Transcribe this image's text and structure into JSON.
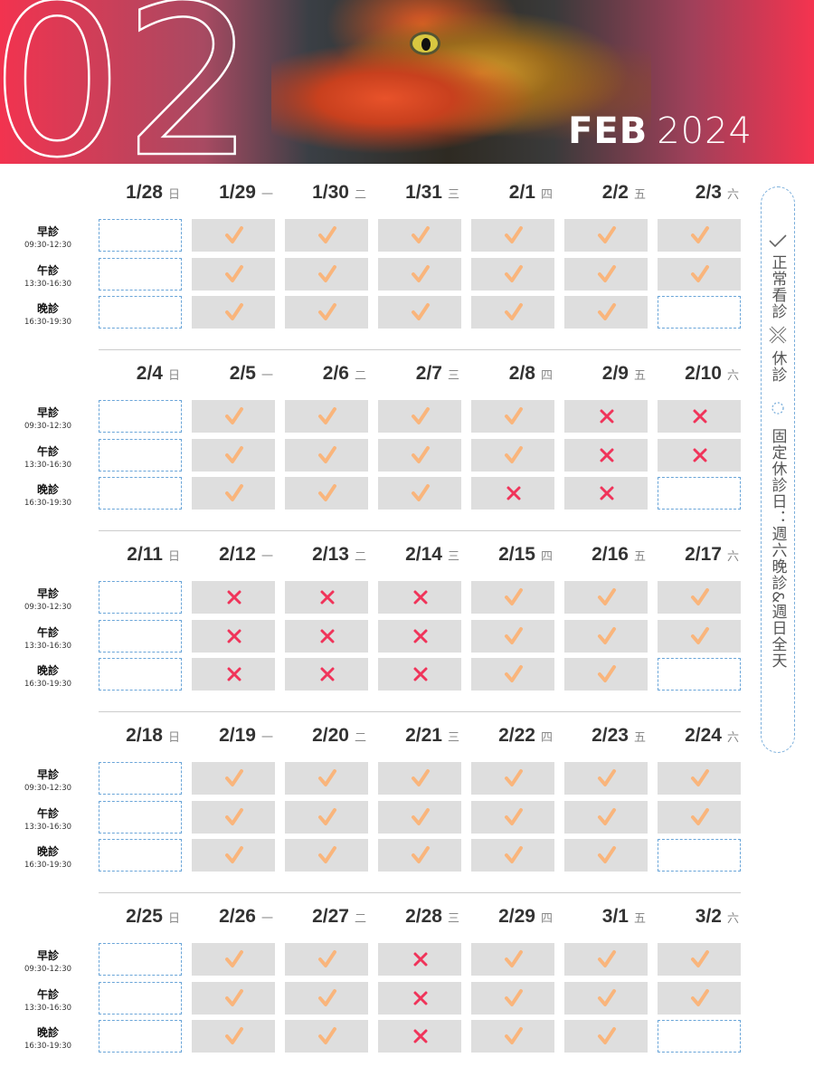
{
  "banner": {
    "big_number": "02",
    "month": "FEB",
    "year": "2024"
  },
  "slots": [
    {
      "name": "早診",
      "time": "09:30-12:30"
    },
    {
      "name": "午診",
      "time": "13:30-16:30"
    },
    {
      "name": "晚診",
      "time": "16:30-19:30"
    }
  ],
  "status_legend": {
    "open": "正常看診",
    "closed": "休診",
    "fixed": "固定休診日：週六晚診&週日全天"
  },
  "colors": {
    "check": "#f9b57c",
    "cross": "#f0345a",
    "open_bg": "#dedede",
    "fixed_border": "#6aa5d8",
    "banner": "#f2334f"
  },
  "weeks": [
    {
      "days": [
        {
          "date": "1/28",
          "weekday": "日",
          "status": [
            "fixed",
            "fixed",
            "fixed"
          ]
        },
        {
          "date": "1/29",
          "weekday": "一",
          "status": [
            "open",
            "open",
            "open"
          ]
        },
        {
          "date": "1/30",
          "weekday": "二",
          "status": [
            "open",
            "open",
            "open"
          ]
        },
        {
          "date": "1/31",
          "weekday": "三",
          "status": [
            "open",
            "open",
            "open"
          ]
        },
        {
          "date": "2/1",
          "weekday": "四",
          "status": [
            "open",
            "open",
            "open"
          ]
        },
        {
          "date": "2/2",
          "weekday": "五",
          "status": [
            "open",
            "open",
            "open"
          ]
        },
        {
          "date": "2/3",
          "weekday": "六",
          "status": [
            "open",
            "open",
            "fixed"
          ]
        }
      ]
    },
    {
      "days": [
        {
          "date": "2/4",
          "weekday": "日",
          "status": [
            "fixed",
            "fixed",
            "fixed"
          ]
        },
        {
          "date": "2/5",
          "weekday": "一",
          "status": [
            "open",
            "open",
            "open"
          ]
        },
        {
          "date": "2/6",
          "weekday": "二",
          "status": [
            "open",
            "open",
            "open"
          ]
        },
        {
          "date": "2/7",
          "weekday": "三",
          "status": [
            "open",
            "open",
            "open"
          ]
        },
        {
          "date": "2/8",
          "weekday": "四",
          "status": [
            "open",
            "open",
            "closed"
          ]
        },
        {
          "date": "2/9",
          "weekday": "五",
          "status": [
            "closed",
            "closed",
            "closed"
          ]
        },
        {
          "date": "2/10",
          "weekday": "六",
          "status": [
            "closed",
            "closed",
            "fixed"
          ]
        }
      ]
    },
    {
      "days": [
        {
          "date": "2/11",
          "weekday": "日",
          "status": [
            "fixed",
            "fixed",
            "fixed"
          ]
        },
        {
          "date": "2/12",
          "weekday": "一",
          "status": [
            "closed",
            "closed",
            "closed"
          ]
        },
        {
          "date": "2/13",
          "weekday": "二",
          "status": [
            "closed",
            "closed",
            "closed"
          ]
        },
        {
          "date": "2/14",
          "weekday": "三",
          "status": [
            "closed",
            "closed",
            "closed"
          ]
        },
        {
          "date": "2/15",
          "weekday": "四",
          "status": [
            "open",
            "open",
            "open"
          ]
        },
        {
          "date": "2/16",
          "weekday": "五",
          "status": [
            "open",
            "open",
            "open"
          ]
        },
        {
          "date": "2/17",
          "weekday": "六",
          "status": [
            "open",
            "open",
            "fixed"
          ]
        }
      ]
    },
    {
      "days": [
        {
          "date": "2/18",
          "weekday": "日",
          "status": [
            "fixed",
            "fixed",
            "fixed"
          ]
        },
        {
          "date": "2/19",
          "weekday": "一",
          "status": [
            "open",
            "open",
            "open"
          ]
        },
        {
          "date": "2/20",
          "weekday": "二",
          "status": [
            "open",
            "open",
            "open"
          ]
        },
        {
          "date": "2/21",
          "weekday": "三",
          "status": [
            "open",
            "open",
            "open"
          ]
        },
        {
          "date": "2/22",
          "weekday": "四",
          "status": [
            "open",
            "open",
            "open"
          ]
        },
        {
          "date": "2/23",
          "weekday": "五",
          "status": [
            "open",
            "open",
            "open"
          ]
        },
        {
          "date": "2/24",
          "weekday": "六",
          "status": [
            "open",
            "open",
            "fixed"
          ]
        }
      ]
    },
    {
      "days": [
        {
          "date": "2/25",
          "weekday": "日",
          "status": [
            "fixed",
            "fixed",
            "fixed"
          ]
        },
        {
          "date": "2/26",
          "weekday": "一",
          "status": [
            "open",
            "open",
            "open"
          ]
        },
        {
          "date": "2/27",
          "weekday": "二",
          "status": [
            "open",
            "open",
            "open"
          ]
        },
        {
          "date": "2/28",
          "weekday": "三",
          "status": [
            "closed",
            "closed",
            "closed"
          ]
        },
        {
          "date": "2/29",
          "weekday": "四",
          "status": [
            "open",
            "open",
            "open"
          ]
        },
        {
          "date": "3/1",
          "weekday": "五",
          "status": [
            "open",
            "open",
            "open"
          ]
        },
        {
          "date": "3/2",
          "weekday": "六",
          "status": [
            "open",
            "open",
            "fixed"
          ]
        }
      ]
    }
  ]
}
